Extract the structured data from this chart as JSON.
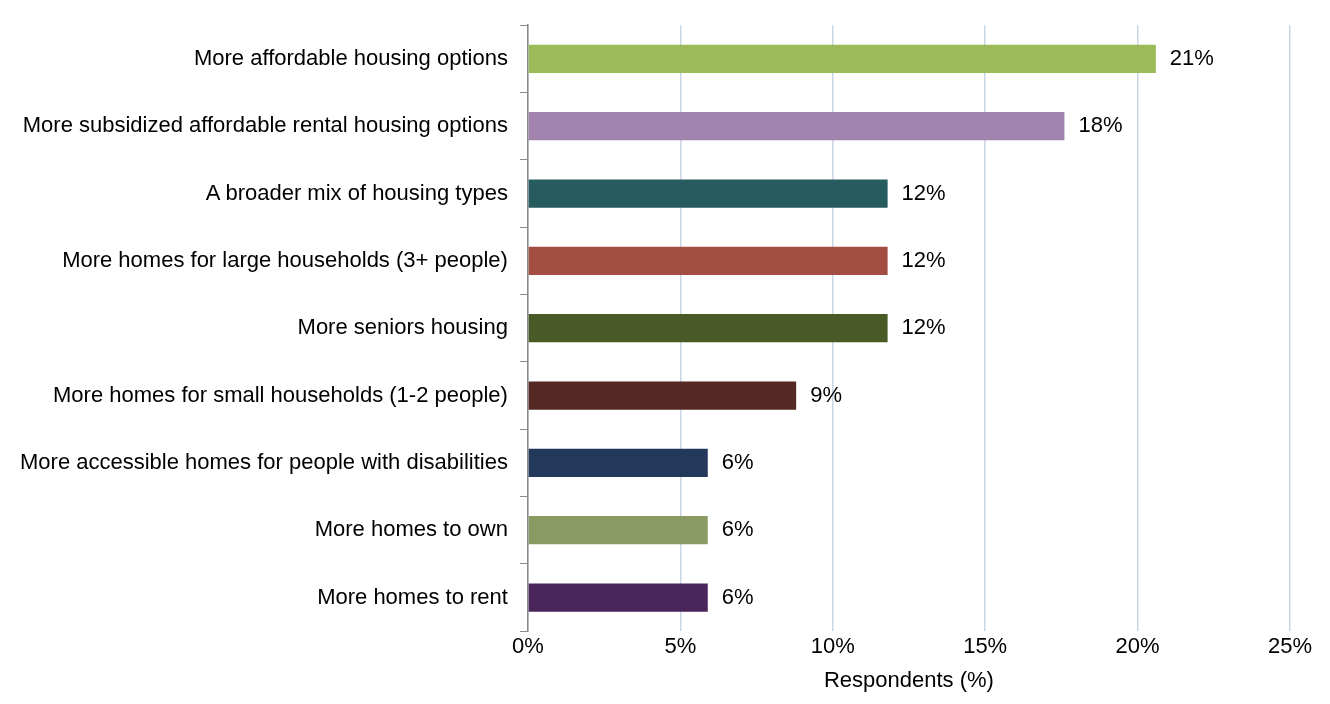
{
  "chart_data": {
    "type": "bar",
    "orientation": "horizontal",
    "xlabel": "Respondents (%)",
    "categories": [
      "More affordable housing options",
      "More subsidized affordable rental housing options",
      "A broader mix of housing types",
      "More homes for large households (3+ people)",
      "More seniors housing",
      "More homes for small households (1-2 people)",
      "More accessible homes for people with disabilities",
      "More homes to own",
      "More homes to rent"
    ],
    "values": [
      20.6,
      17.6,
      11.8,
      11.8,
      11.8,
      8.8,
      5.9,
      5.9,
      5.9
    ],
    "value_labels": [
      "21%",
      "18%",
      "12%",
      "12%",
      "12%",
      "9%",
      "6%",
      "6%",
      "6%"
    ],
    "colors": [
      "#9bbb59",
      "#a283ad",
      "#265b5f",
      "#a34d43",
      "#4a5a26",
      "#552823",
      "#23395b",
      "#8a9a63",
      "#4a2559"
    ],
    "xlim": [
      0,
      25
    ],
    "xticks": [
      {
        "value": 0,
        "label": "0%"
      },
      {
        "value": 5,
        "label": "5%"
      },
      {
        "value": 10,
        "label": "10%"
      },
      {
        "value": 15,
        "label": "15%"
      },
      {
        "value": 20,
        "label": "20%"
      },
      {
        "value": 25,
        "label": "25%"
      }
    ],
    "grid": "x",
    "legend": false
  }
}
